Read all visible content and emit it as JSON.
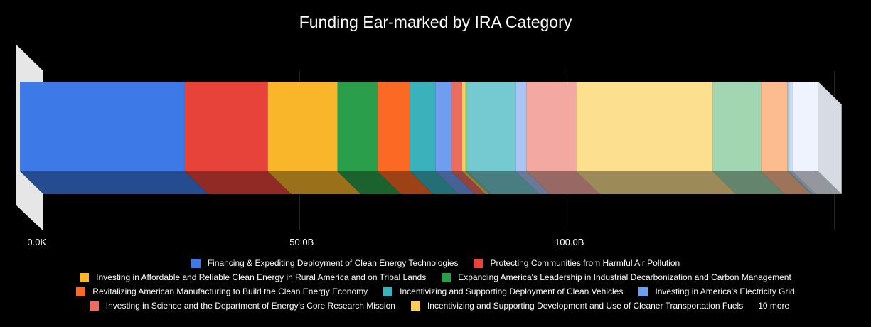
{
  "chart_data": {
    "type": "bar",
    "stacked": true,
    "orientation": "horizontal",
    "three_d": true,
    "title": "Funding Ear-marked by IRA Category",
    "x_ticks": [
      "0.0K",
      "50.0B",
      "100.0B"
    ],
    "xlim": [
      0,
      150
    ],
    "grid": true,
    "legend_position": "bottom",
    "legend_more": "10 more",
    "series": [
      {
        "name": "Financing & Expediting Deployment of Clean Energy Technologies",
        "value": 30.8,
        "color": "#3d7ae8"
      },
      {
        "name": "Protecting Communities from Harmful Air Pollution",
        "value": 15.5,
        "color": "#e8433a"
      },
      {
        "name": "Investing in Affordable and Reliable Clean Energy in Rural America and on Tribal Lands",
        "value": 13.0,
        "color": "#f9b62a"
      },
      {
        "name": "Expanding America's Leadership in Industrial Decarbonization and Carbon Management",
        "value": 7.5,
        "color": "#2b9e4b"
      },
      {
        "name": "Revitalizing American Manufacturing to Build the Clean Energy Economy",
        "value": 6.0,
        "color": "#fb6a24"
      },
      {
        "name": "Incentivizing and Supporting Deployment of Clean Vehicles",
        "value": 4.8,
        "color": "#3ab2bc"
      },
      {
        "name": "Investing in America's Electricity Grid",
        "value": 3.0,
        "color": "#6f9df0"
      },
      {
        "name": "Investing in Science and the Department of Energy's Core Research Mission",
        "value": 2.0,
        "color": "#ec6c61"
      },
      {
        "name": "Incentivizing and Supporting Development and Use of Cleaner Transportation Fuels",
        "value": 0.6,
        "color": "#fbcc5c"
      },
      {
        "name": "",
        "value": 0.4,
        "color": "#7fc98e"
      },
      {
        "name": "",
        "value": 9.0,
        "color": "#74cad0"
      },
      {
        "name": "",
        "value": 2.0,
        "color": "#a9c4f5"
      },
      {
        "name": "",
        "value": 9.3,
        "color": "#f4a8a2"
      },
      {
        "name": "",
        "value": 25.5,
        "color": "#fce090"
      },
      {
        "name": "",
        "value": 9.0,
        "color": "#a2d5b1"
      },
      {
        "name": "",
        "value": 5.0,
        "color": "#fdbb90"
      },
      {
        "name": "",
        "value": 0.3,
        "color": "#8fd1d6"
      },
      {
        "name": "",
        "value": 0.6,
        "color": "#c9dafa"
      },
      {
        "name": "",
        "value": 4.8,
        "color": "#eef3fd"
      }
    ]
  }
}
